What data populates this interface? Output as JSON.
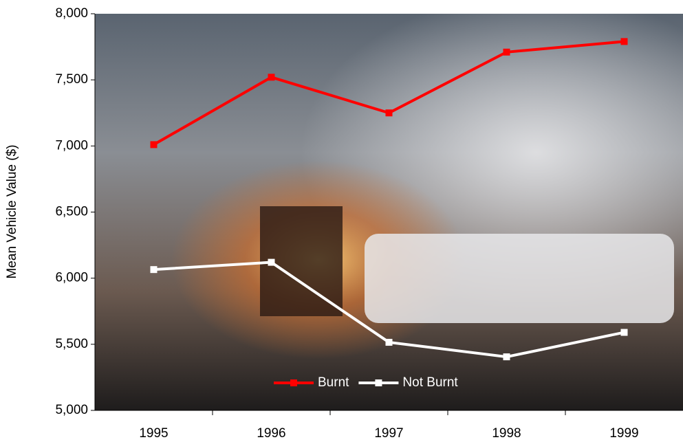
{
  "chart_data": {
    "type": "line",
    "y_label": "Mean Vehicle Value ($)",
    "categories": [
      "1995",
      "1996",
      "1997",
      "1998",
      "1999"
    ],
    "series": [
      {
        "name": "Burnt",
        "color": "#ff0000",
        "values": [
          7010,
          7520,
          7250,
          7710,
          7790
        ]
      },
      {
        "name": "Not Burnt",
        "color": "#ffffff",
        "values": [
          6065,
          6120,
          5515,
          5405,
          5590
        ]
      }
    ],
    "ylim": [
      5000,
      8000
    ],
    "yticks": [
      {
        "value": 5000,
        "label": "5,000"
      },
      {
        "value": 5500,
        "label": "5,500"
      },
      {
        "value": 6000,
        "label": "6,000"
      },
      {
        "value": 6500,
        "label": "6,500"
      },
      {
        "value": 7000,
        "label": "7,000"
      },
      {
        "value": 7500,
        "label": "7,500"
      },
      {
        "value": 8000,
        "label": "8,000"
      }
    ],
    "legend": "bottom"
  }
}
